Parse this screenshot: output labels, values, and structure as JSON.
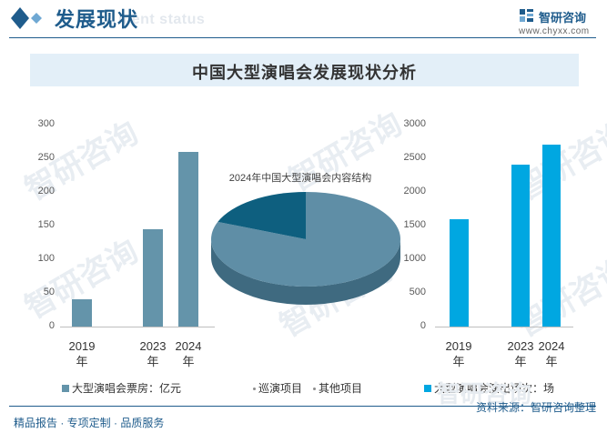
{
  "header": {
    "title": "发展现状",
    "watermark_text": "ment status",
    "brand_name": "智研咨询",
    "brand_url": "www.chyxx.com"
  },
  "main_title": "中国大型演唱会发展现状分析",
  "watermark": "智研咨询",
  "colors": {
    "bar_left": "#6494aa",
    "bar_right": "#00a7e1",
    "pie_main": "#5f8ea6",
    "pie_other": "#0e5f7f",
    "brand": "#1f5c8c"
  },
  "chart_data": [
    {
      "type": "bar",
      "title": "",
      "categories": [
        "2019年",
        "2023年",
        "2024年"
      ],
      "series": [
        {
          "name": "大型演唱会票房：亿元",
          "values": [
            40,
            145,
            260
          ]
        }
      ],
      "yticks": [
        "0",
        "50",
        "100",
        "150",
        "200",
        "250",
        "300"
      ],
      "ylim": [
        0,
        300
      ],
      "xlabel": "",
      "ylabel": ""
    },
    {
      "type": "pie",
      "title": "2024年中国大型演唱会内容结构",
      "labels": [
        "巡演项目",
        "其他项目"
      ],
      "values": [
        81,
        19
      ]
    },
    {
      "type": "bar",
      "title": "",
      "categories": [
        "2019年",
        "2023年",
        "2024年"
      ],
      "series": [
        {
          "name": "大型演唱会演出场次：场",
          "values": [
            1600,
            2400,
            2700
          ]
        }
      ],
      "yticks": [
        "0",
        "500",
        "1000",
        "1500",
        "2000",
        "2500",
        "3000"
      ],
      "ylim": [
        0,
        3000
      ],
      "xlabel": "",
      "ylabel": ""
    }
  ],
  "legend": {
    "left": "大型演唱会票房：亿元",
    "pie_a": "巡演项目",
    "pie_b": "其他项目",
    "right": "大型演唱会演出场次：场"
  },
  "footer": {
    "left": "精品报告 · 专项定制 · 品质服务",
    "right": "资料来源：智研咨询整理"
  }
}
